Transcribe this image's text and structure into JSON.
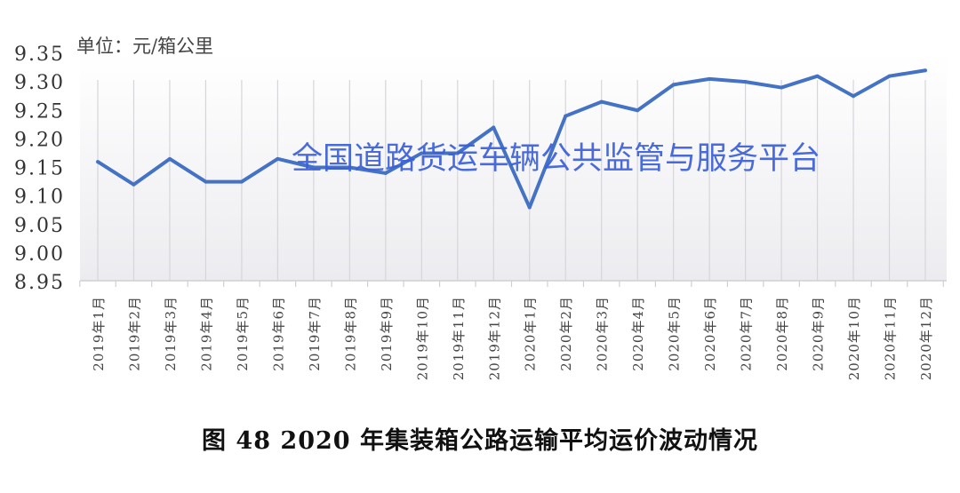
{
  "chart_data": {
    "type": "line",
    "title": "",
    "unit_label": "单位：元/箱公里",
    "xlabel": "",
    "ylabel": "",
    "ylim": [
      8.95,
      9.35
    ],
    "yticks": [
      "9.35",
      "9.30",
      "9.25",
      "9.20",
      "9.15",
      "9.10",
      "9.05",
      "9.00",
      "8.95"
    ],
    "grid": "vertical",
    "categories": [
      "2019年1月",
      "2019年2月",
      "2019年3月",
      "2019年4月",
      "2019年5月",
      "2019年6月",
      "2019年7月",
      "2019年8月",
      "2019年9月",
      "2019年10月",
      "2019年11月",
      "2019年12月",
      "2020年1月",
      "2020年2月",
      "2020年3月",
      "2020年4月",
      "2020年5月",
      "2020年6月",
      "2020年7月",
      "2020年8月",
      "2020年9月",
      "2020年10月",
      "2020年11月",
      "2020年12月"
    ],
    "series": [
      {
        "values": [
          9.16,
          9.12,
          9.165,
          9.125,
          9.125,
          9.165,
          9.15,
          9.15,
          9.14,
          9.175,
          9.175,
          9.22,
          9.08,
          9.24,
          9.265,
          9.25,
          9.295,
          9.305,
          9.3,
          9.29,
          9.31,
          9.275,
          9.31,
          9.32
        ],
        "color": "#4472c4"
      }
    ]
  },
  "watermark": "全国道路货运车辆公共监管与服务平台",
  "caption": "图 48  2020 年集装箱公路运输平均运价波动情况"
}
